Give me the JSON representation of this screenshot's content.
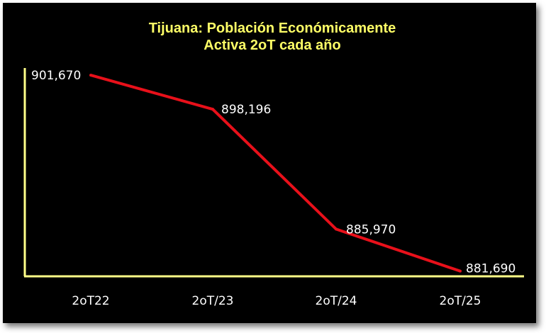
{
  "chart_data": {
    "type": "line",
    "title_line1": "Tijuana: Población Económicamente",
    "title_line2": "Activa 2oT cada año",
    "categories": [
      "2oT22",
      "2oT/23",
      "2oT/24",
      "2oT/25"
    ],
    "values": [
      901670,
      898196,
      885970,
      881690
    ],
    "data_labels": [
      "901,670",
      "898,196",
      "885,970",
      "881,690"
    ],
    "xlabel": "",
    "ylabel": "",
    "ylim": [
      881300,
      902400
    ],
    "grid": false,
    "legend": "none",
    "colors": {
      "background": "#000000",
      "line": "#e8101a",
      "axis": "#ffff88",
      "title": "#ffff66",
      "text": "#ffffff"
    }
  }
}
